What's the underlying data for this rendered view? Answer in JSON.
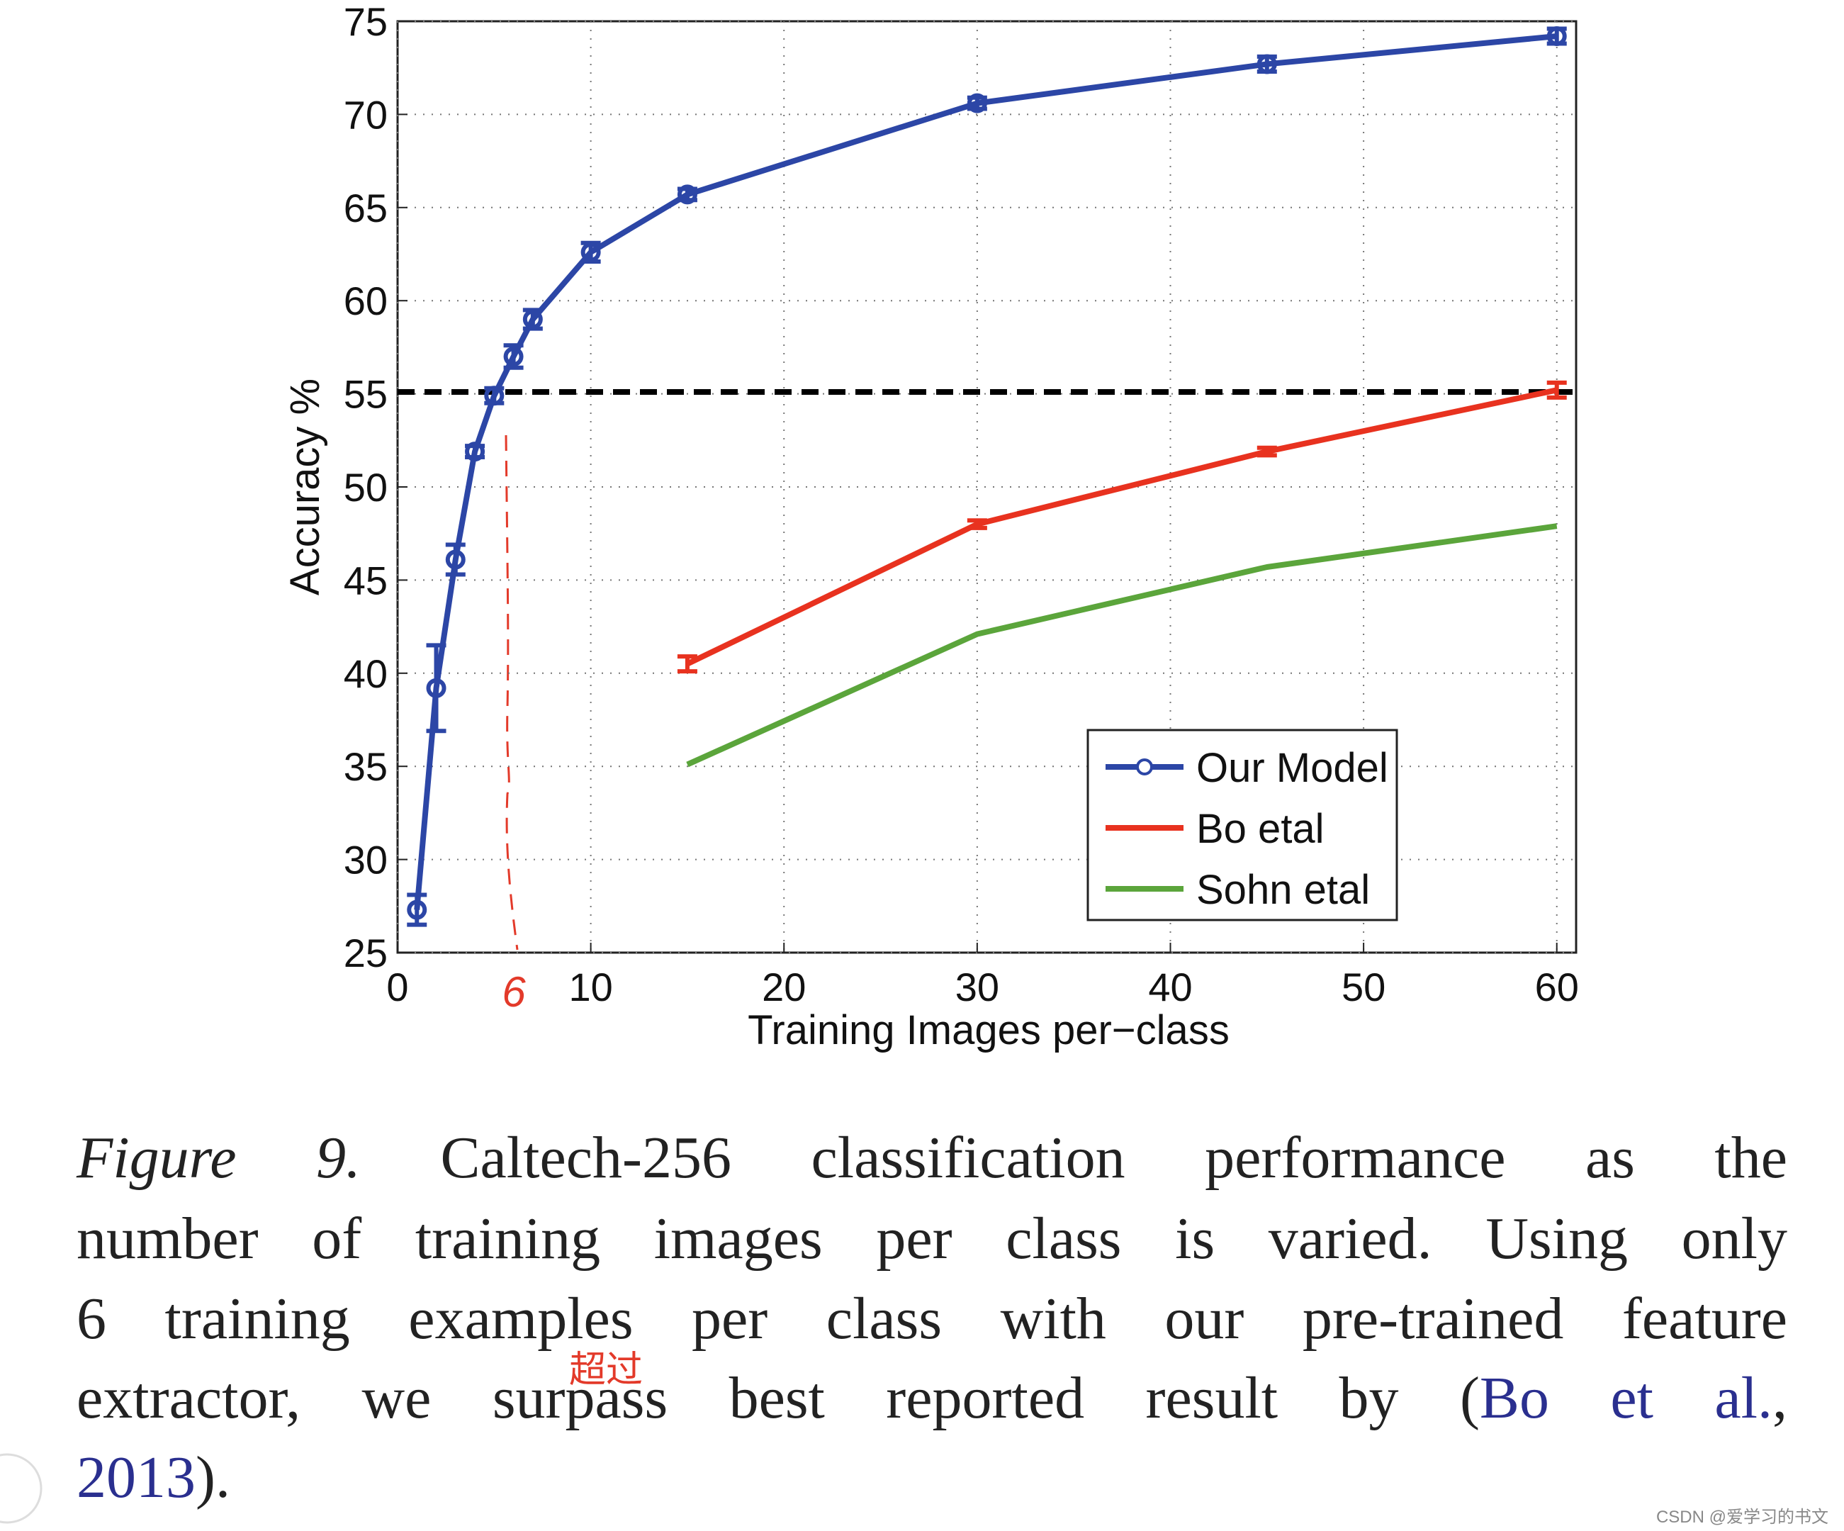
{
  "chart_data": {
    "type": "line",
    "xlabel": "Training Images per−class",
    "ylabel": "Accuracy %",
    "xlim": [
      0,
      61
    ],
    "ylim": [
      25,
      75
    ],
    "xticks": [
      0,
      10,
      20,
      30,
      40,
      50,
      60
    ],
    "yticks": [
      25,
      30,
      35,
      40,
      45,
      50,
      55,
      60,
      65,
      70,
      75
    ],
    "grid": true,
    "legend": "lower right",
    "reference_line": 55.1,
    "series": [
      {
        "name": "Our Model",
        "color": "#2c46a6",
        "marker": "circle",
        "x": [
          1,
          2,
          3,
          4,
          5,
          6,
          7,
          10,
          15,
          30,
          45,
          60
        ],
        "values": [
          27.3,
          39.2,
          46.1,
          51.9,
          54.9,
          57.0,
          59.0,
          62.6,
          65.7,
          70.6,
          72.7,
          74.2
        ],
        "errors": [
          0.8,
          2.3,
          0.8,
          0.3,
          0.4,
          0.6,
          0.5,
          0.5,
          0.3,
          0.3,
          0.4,
          0.4
        ]
      },
      {
        "name": "Bo etal",
        "color": "#e8321f",
        "x": [
          15,
          30,
          45,
          60
        ],
        "values": [
          40.5,
          48.0,
          51.9,
          55.2
        ],
        "errors": [
          0.4,
          0.2,
          0.2,
          0.4
        ]
      },
      {
        "name": "Sohn etal",
        "color": "#5ba53b",
        "x": [
          15,
          30,
          45,
          60
        ],
        "values": [
          35.1,
          42.1,
          45.7,
          47.9
        ]
      }
    ],
    "annotations": [
      "6"
    ]
  },
  "caption": {
    "label": "Figure 9.",
    "lines": [
      "Caltech-256 classification performance as the",
      "number of training images per class is varied. Using only",
      "6 training examples per class with our pre-trained feature",
      "extractor, we surpass best reported result by ("
    ],
    "cite_1": "Bo et al.",
    "cite_sep": ",",
    "cite_2": "2013",
    "close": ").",
    "note": "超过"
  },
  "watermark": "CSDN @爱学习的书文"
}
